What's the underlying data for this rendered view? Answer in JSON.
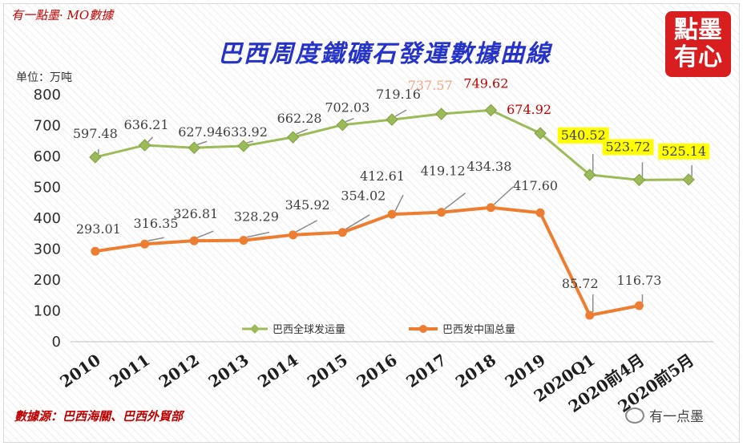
{
  "header": {
    "brand": "有一點墨· MO數據",
    "title": "巴西周度鐵礦石發運數據曲線",
    "unit": "单位：万吨",
    "source": "數據源：巴西海關、巴西外貿部",
    "seal_text": "點墨有心",
    "watermark": "有一点墨"
  },
  "colors": {
    "series_global": "#9bbb59",
    "series_china": "#ed7d31",
    "highlight": "#ffff00",
    "label_red": "#c00000",
    "label_salmon": "#f4a582",
    "label_dark": "#404040"
  },
  "chart_data": {
    "type": "line",
    "title": "巴西周度鐵礦石發運數據曲線",
    "ylabel": "单位：万吨",
    "xlabel": "",
    "ylim": [
      0,
      800
    ],
    "yticks": [
      0,
      100,
      200,
      300,
      400,
      500,
      600,
      700,
      800
    ],
    "grid": false,
    "legend": "bottom",
    "categories": [
      "2010",
      "2011",
      "2012",
      "2013",
      "2014",
      "2015",
      "2016",
      "2017",
      "2018",
      "2019",
      "2020Q1",
      "2020前4月",
      "2020前5月"
    ],
    "series": [
      {
        "name": "巴西全球发运量",
        "marker": "diamond",
        "color": "#9bbb59",
        "values": [
          597.48,
          636.21,
          627.94,
          633.92,
          662.28,
          702.03,
          719.16,
          737.57,
          749.62,
          674.92,
          540.52,
          523.72,
          525.14
        ],
        "labels": [
          "597.48",
          "636.21",
          "627.94",
          "633.92",
          "662.28",
          "702.03",
          "719.16",
          "737.57",
          "749.62",
          "674.92",
          "540.52",
          "523.72",
          "525.14"
        ],
        "label_styles": [
          "dark",
          "dark",
          "dark",
          "dark",
          "dark",
          "dark",
          "dark",
          "salmon",
          "red",
          "red",
          "highlight",
          "highlight",
          "highlight"
        ]
      },
      {
        "name": "巴西发中国总量",
        "marker": "circle",
        "color": "#ed7d31",
        "values": [
          293.01,
          316.35,
          326.81,
          328.29,
          345.92,
          354.02,
          412.61,
          419.12,
          434.38,
          417.6,
          85.72,
          116.73,
          null
        ],
        "labels": [
          "293.01",
          "316.35",
          "326.81",
          "328.29",
          "345.92",
          "354.02",
          "412.61",
          "419.12",
          "434.38",
          "417.60",
          "85.72",
          "116.73",
          ""
        ],
        "label_styles": [
          "dark",
          "dark",
          "dark",
          "dark",
          "dark",
          "dark",
          "dark",
          "dark",
          "dark",
          "dark",
          "dark",
          "dark",
          "dark"
        ]
      }
    ]
  }
}
